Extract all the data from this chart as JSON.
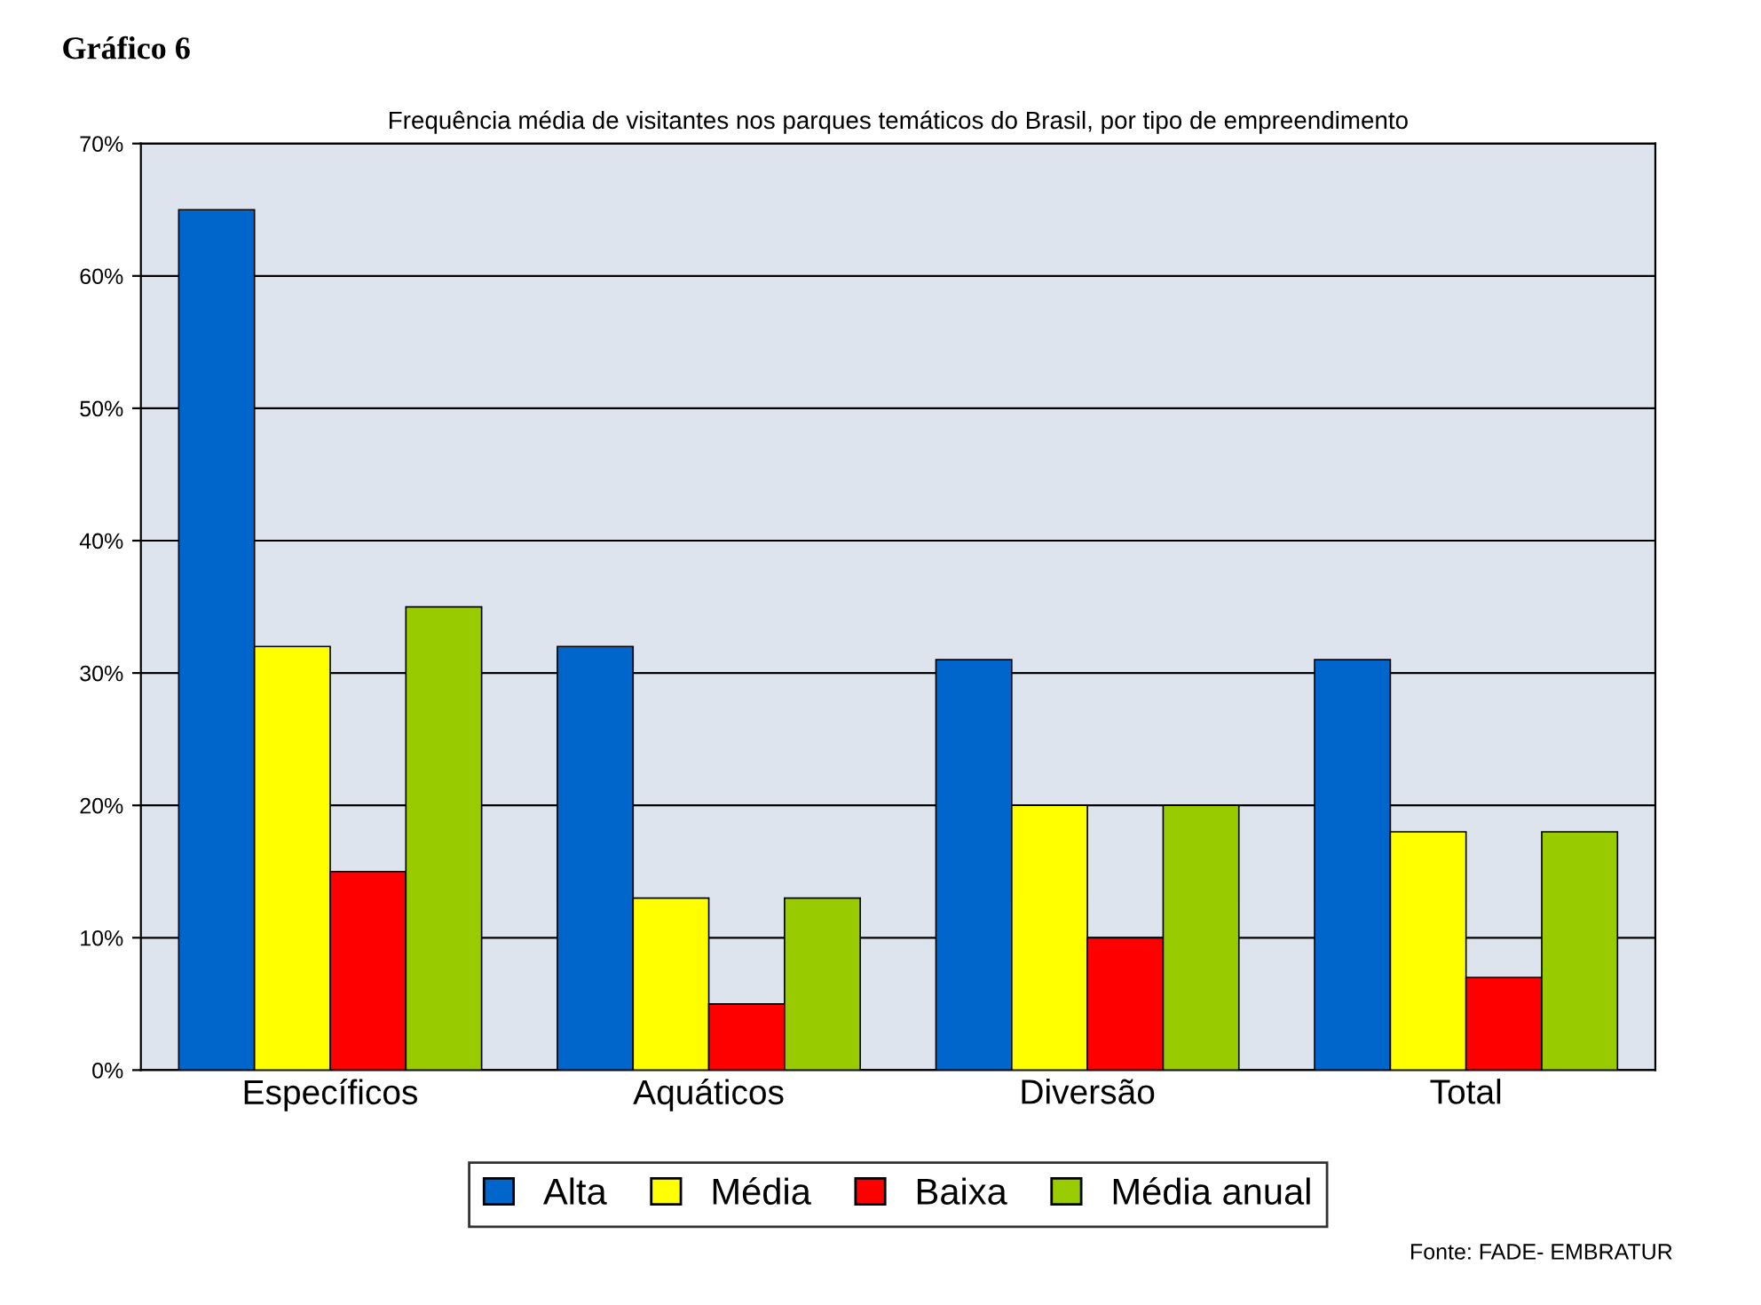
{
  "chart_data": {
    "type": "bar",
    "title": "Gráfico 6",
    "subtitle": "Frequência média de visitantes nos parques temáticos do Brasil, por tipo de empreendimento",
    "categories": [
      "Específicos",
      "Aquáticos",
      "Diversão",
      "Total"
    ],
    "series": [
      {
        "name": "Alta",
        "color": "#0066cc",
        "values": [
          0.65,
          0.32,
          0.31,
          0.31
        ]
      },
      {
        "name": "Média",
        "color": "#ffff00",
        "values": [
          0.32,
          0.13,
          0.2,
          0.18
        ]
      },
      {
        "name": "Baixa",
        "color": "#ff0000",
        "values": [
          0.15,
          0.05,
          0.1,
          0.07
        ]
      },
      {
        "name": "Média anual",
        "color": "#99cc00",
        "values": [
          0.35,
          0.13,
          0.2,
          0.18
        ]
      }
    ],
    "ylim": [
      0,
      0.7
    ],
    "yticks": [
      {
        "value": 0,
        "label": "0%"
      },
      {
        "value": 0.1,
        "label": "10%"
      },
      {
        "value": 0.2,
        "label": "20%"
      },
      {
        "value": 0.3,
        "label": "30%"
      },
      {
        "value": 0.4,
        "label": "40%"
      },
      {
        "value": 0.5,
        "label": "50%"
      },
      {
        "value": 0.6,
        "label": "60%"
      },
      {
        "value": 0.7,
        "label": "70%"
      }
    ],
    "grid": "y",
    "legend": "bottom",
    "annotations": [
      "Fonte: FADE- EMBRATUR"
    ]
  }
}
